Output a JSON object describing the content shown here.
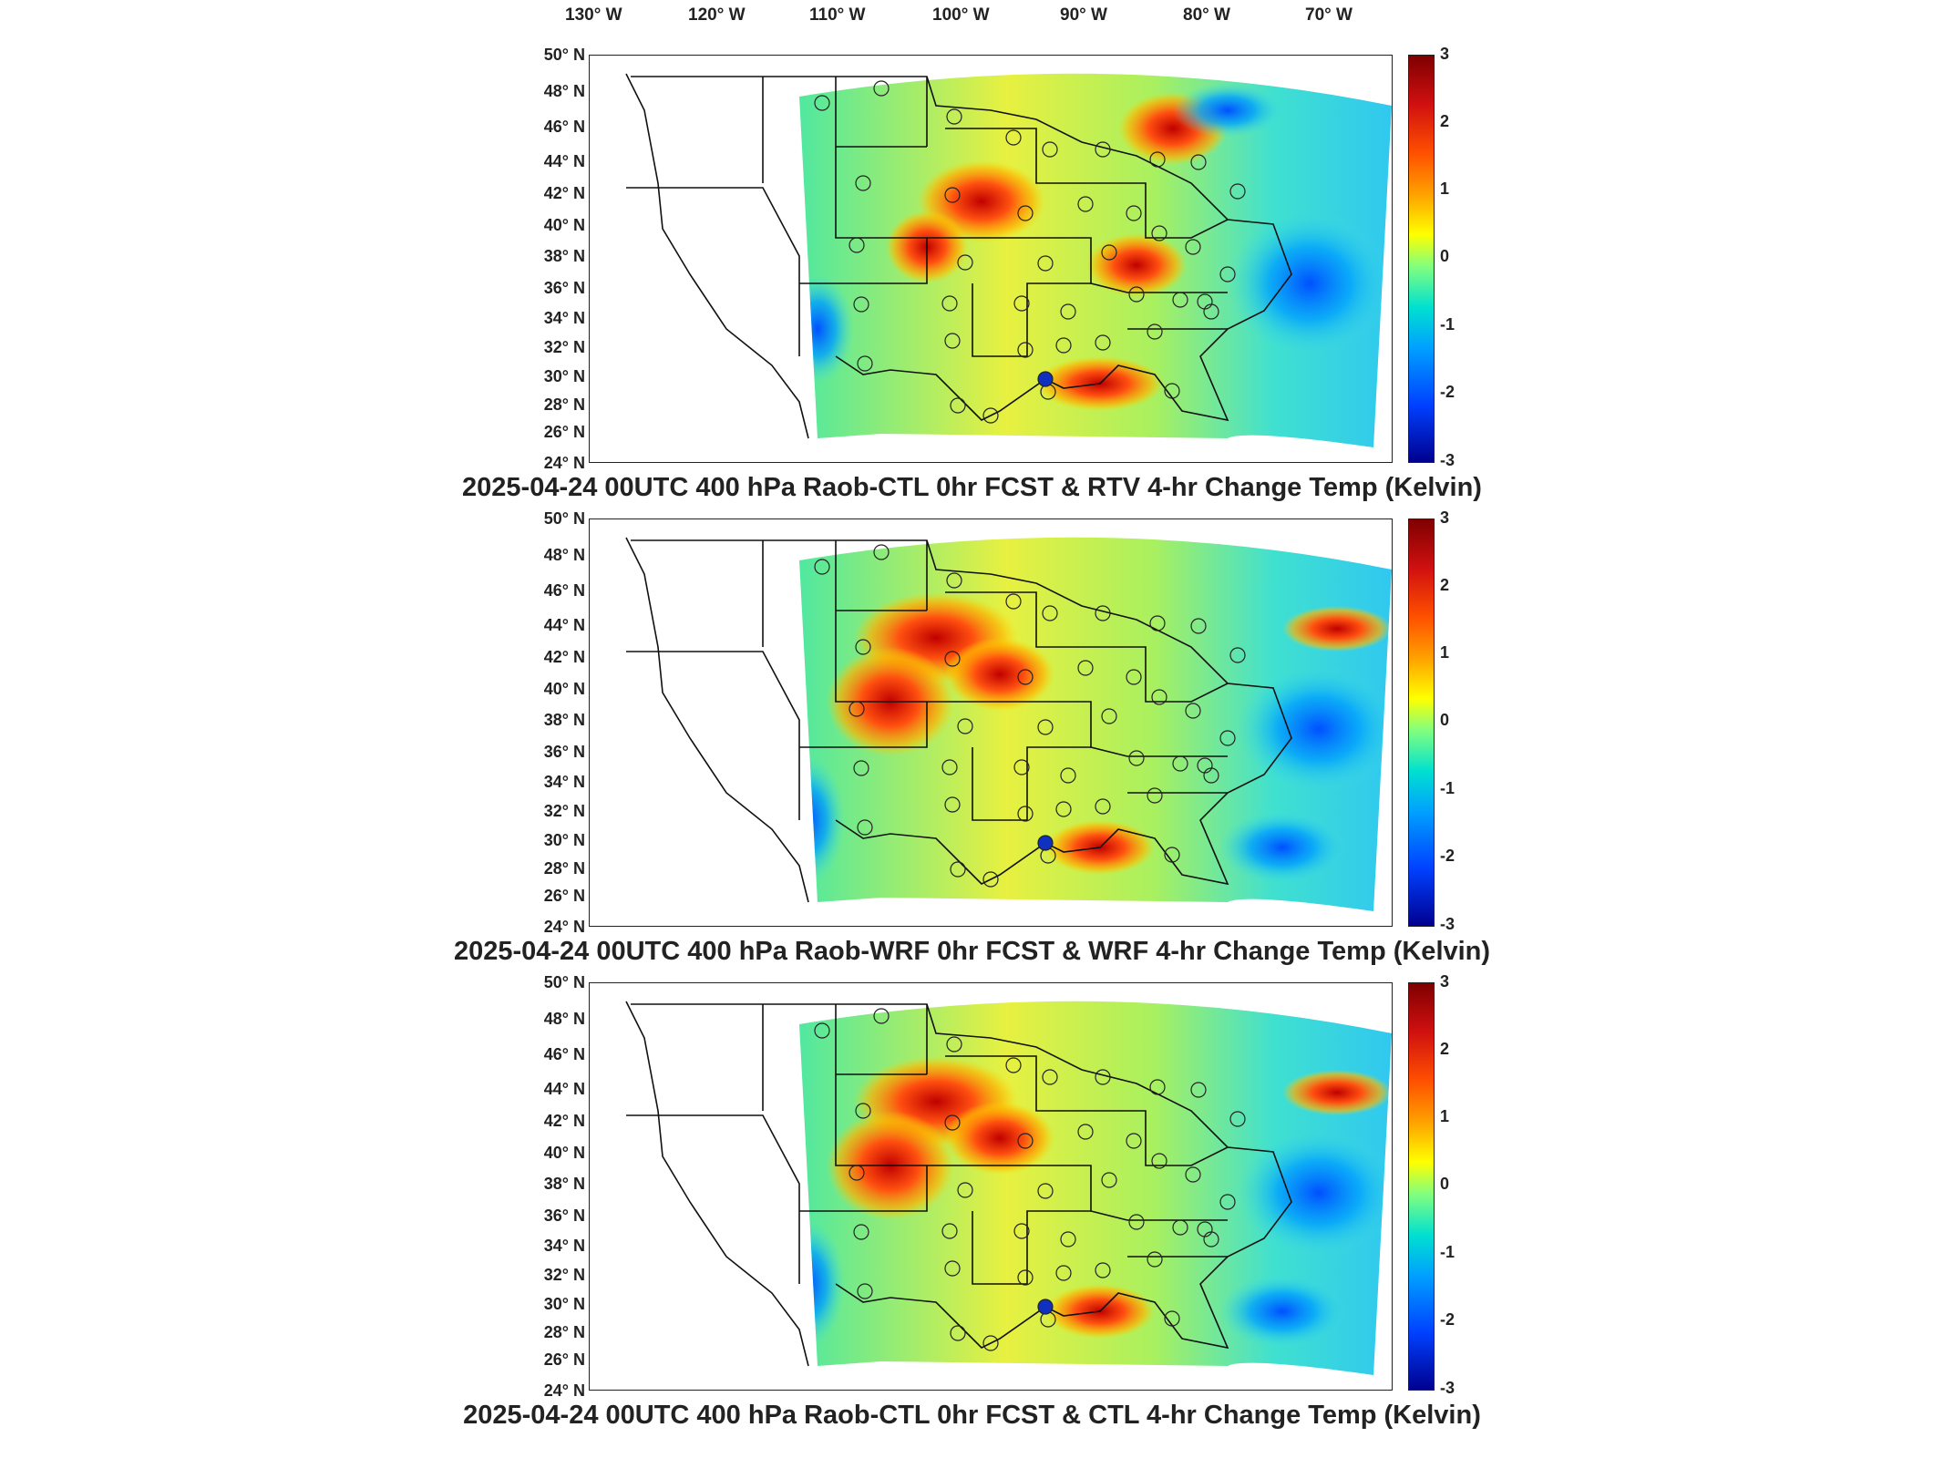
{
  "longitude_labels": [
    "130° W",
    "120° W",
    "110° W",
    "100° W",
    "90° W",
    "80° W",
    "70° W"
  ],
  "latitude_labels": [
    "50° N",
    "48° N",
    "46° N",
    "44° N",
    "42° N",
    "40° N",
    "38° N",
    "36° N",
    "34° N",
    "32° N",
    "30° N",
    "28° N",
    "26° N",
    "24° N"
  ],
  "colorbar": {
    "ticks": [
      "3",
      "2",
      "1",
      "0",
      "-1",
      "-2",
      "-3"
    ],
    "range": [
      -3,
      3
    ],
    "colormap": [
      "#7f0000",
      "#ff0000",
      "#ffa000",
      "#ffff00",
      "#80ff80",
      "#00e0ff",
      "#0040ff",
      "#00008f"
    ]
  },
  "panels": [
    {
      "title": "2025-04-24 00UTC 400 hPa Raob-CTL 0hr FCST & RTV 4-hr Change Temp (Kelvin)"
    },
    {
      "title": "2025-04-24 00UTC 400 hPa Raob-WRF 0hr FCST & WRF 4-hr Change Temp (Kelvin)"
    },
    {
      "title": "2025-04-24 00UTC 400 hPa Raob-CTL 0hr FCST & CTL 4-hr Change Temp (Kelvin)"
    }
  ]
}
